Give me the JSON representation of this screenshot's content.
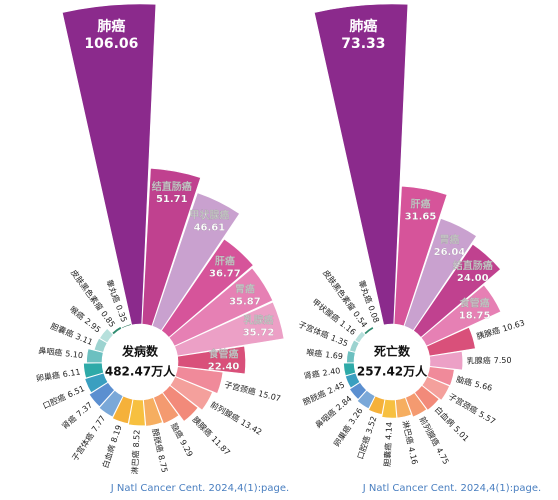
{
  "chart_data": [
    {
      "type": "rose",
      "center_title": "发病数",
      "center_value": "482.47万人",
      "categories": [
        "肺癌",
        "结直肠癌",
        "甲状腺癌",
        "肝癌",
        "胃癌",
        "乳腺癌",
        "食管癌",
        "子宫颈癌",
        "前列腺癌",
        "胰腺癌",
        "脑癌",
        "膀胱癌",
        "淋巴癌",
        "白血病",
        "子宫体癌",
        "肾癌",
        "口腔癌",
        "卵巢癌",
        "鼻咽癌",
        "胆囊癌",
        "喉癌",
        "皮肤黑色素瘤",
        "睾丸癌"
      ],
      "values": [
        106.06,
        51.71,
        46.61,
        36.77,
        35.87,
        35.72,
        22.4,
        15.07,
        13.42,
        11.87,
        9.29,
        8.75,
        8.52,
        8.19,
        7.77,
        7.37,
        6.51,
        6.11,
        5.1,
        3.11,
        2.95,
        0.85,
        0.35
      ],
      "value_labels": [
        "106.06",
        "51.71",
        "46.61",
        "36.77",
        "35.87",
        "35.72",
        "22.40",
        "15.07",
        "13.42",
        "11.87",
        "9.29",
        "8.75",
        "8.52",
        "8.19",
        "7.77",
        "7.37",
        "6.51",
        "6.11",
        "5.10",
        "3.11",
        "2.95",
        "0.85",
        "0.35"
      ],
      "colors": [
        "#8b2a8c",
        "#c0418f",
        "#c9a1cf",
        "#d6549a",
        "#e680b4",
        "#eca0c6",
        "#d9507a",
        "#f08a9a",
        "#f4a09c",
        "#f28a7a",
        "#f49a70",
        "#f6ae60",
        "#f7c040",
        "#f5b13a",
        "#7aa8d8",
        "#5b8fd0",
        "#3a9fc0",
        "#2eaaa8",
        "#6cc0c0",
        "#9cd3d0",
        "#b6e0dc",
        "#2e8a6e",
        "#1a6a50"
      ],
      "source": "J Natl Cancer Cent. 2024,4(1):page."
    },
    {
      "type": "rose",
      "center_title": "死亡数",
      "center_value": "257.42万人",
      "categories": [
        "肺癌",
        "肝癌",
        "胃癌",
        "结直肠癌",
        "食管癌",
        "胰腺癌",
        "乳腺癌",
        "脑癌",
        "子宫颈癌",
        "白血病",
        "前列腺癌",
        "淋巴癌",
        "胆囊癌",
        "口腔癌",
        "卵巢癌",
        "鼻咽癌",
        "膀胱癌",
        "肾癌",
        "喉癌",
        "子宫体癌",
        "甲状腺癌",
        "皮肤黑色素瘤",
        "睾丸癌"
      ],
      "values": [
        73.33,
        31.65,
        26.04,
        24.0,
        18.75,
        10.63,
        7.5,
        5.66,
        5.57,
        5.01,
        4.75,
        4.16,
        4.14,
        3.52,
        3.26,
        2.84,
        2.45,
        2.4,
        1.69,
        1.35,
        1.16,
        0.54,
        0.08
      ],
      "value_labels": [
        "73.33",
        "31.65",
        "26.04",
        "24.00",
        "18.75",
        "10.63",
        "7.50",
        "5.66",
        "5.57",
        "5.01",
        "4.75",
        "4.16",
        "4.14",
        "3.52",
        "3.26",
        "2.84",
        "2.45",
        "2.40",
        "1.69",
        "1.35",
        "1.16",
        "0.54",
        "0.08"
      ],
      "colors": [
        "#8b2a8c",
        "#d6549a",
        "#c9a1cf",
        "#c0418f",
        "#e680b4",
        "#d9507a",
        "#eca0c6",
        "#f08a9a",
        "#f4a09c",
        "#f28a7a",
        "#f49a70",
        "#f6ae60",
        "#f7c040",
        "#f5b13a",
        "#7aa8d8",
        "#5b8fd0",
        "#3a9fc0",
        "#2eaaa8",
        "#6cc0c0",
        "#9cd3d0",
        "#b6e0dc",
        "#2e8a6e",
        "#1a6a50"
      ],
      "source": "J Natl Cancer Cent. 2024,4(1):page."
    }
  ]
}
